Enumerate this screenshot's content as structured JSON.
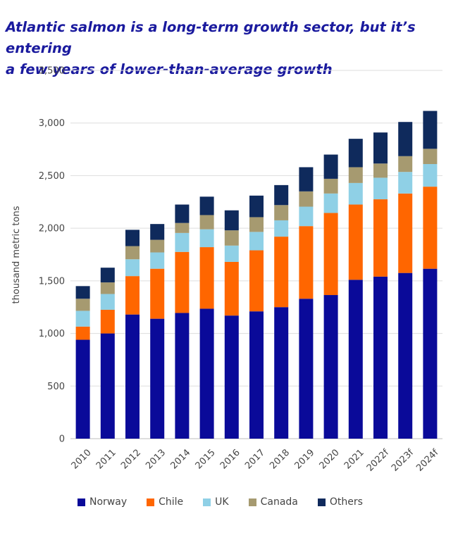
{
  "chart_data": {
    "type": "bar",
    "stacked": true,
    "title": [
      "Atlantic salmon is a long-term growth sector, but it’s entering",
      "a few years of lower-than-average growth"
    ],
    "xlabel": "",
    "ylabel": "thousand metric tons",
    "ylim": [
      0,
      3500
    ],
    "yticks": [
      0,
      500,
      1000,
      1500,
      2000,
      2500,
      3000,
      3500
    ],
    "ytick_labels": [
      "0",
      "500",
      "1,000",
      "1,500",
      "2,000",
      "2,500",
      "3,000",
      "3,500"
    ],
    "grid": true,
    "legend_position": "bottom",
    "categories": [
      "2010",
      "2011",
      "2012",
      "2013",
      "2014",
      "2015",
      "2016",
      "2017",
      "2018",
      "2019",
      "2020",
      "2021",
      "2022f",
      "2023f",
      "2024f"
    ],
    "series": [
      {
        "name": "Norway",
        "color": "#0a0a99",
        "values": [
          940,
          1000,
          1180,
          1140,
          1195,
          1235,
          1170,
          1210,
          1250,
          1330,
          1365,
          1510,
          1540,
          1575,
          1615
        ]
      },
      {
        "name": "Chile",
        "color": "#ff6600",
        "values": [
          125,
          225,
          365,
          475,
          580,
          585,
          510,
          580,
          670,
          690,
          780,
          715,
          735,
          755,
          780
        ]
      },
      {
        "name": "UK",
        "color": "#8fd0e6",
        "values": [
          150,
          150,
          160,
          155,
          180,
          170,
          155,
          175,
          155,
          185,
          185,
          205,
          205,
          205,
          215
        ]
      },
      {
        "name": "Canada",
        "color": "#a69a70",
        "values": [
          115,
          110,
          125,
          120,
          95,
          135,
          145,
          140,
          145,
          145,
          140,
          150,
          135,
          150,
          145
        ]
      },
      {
        "name": "Others",
        "color": "#0f2a5c",
        "values": [
          120,
          140,
          155,
          150,
          175,
          175,
          190,
          205,
          190,
          230,
          230,
          270,
          295,
          325,
          360
        ]
      }
    ]
  }
}
